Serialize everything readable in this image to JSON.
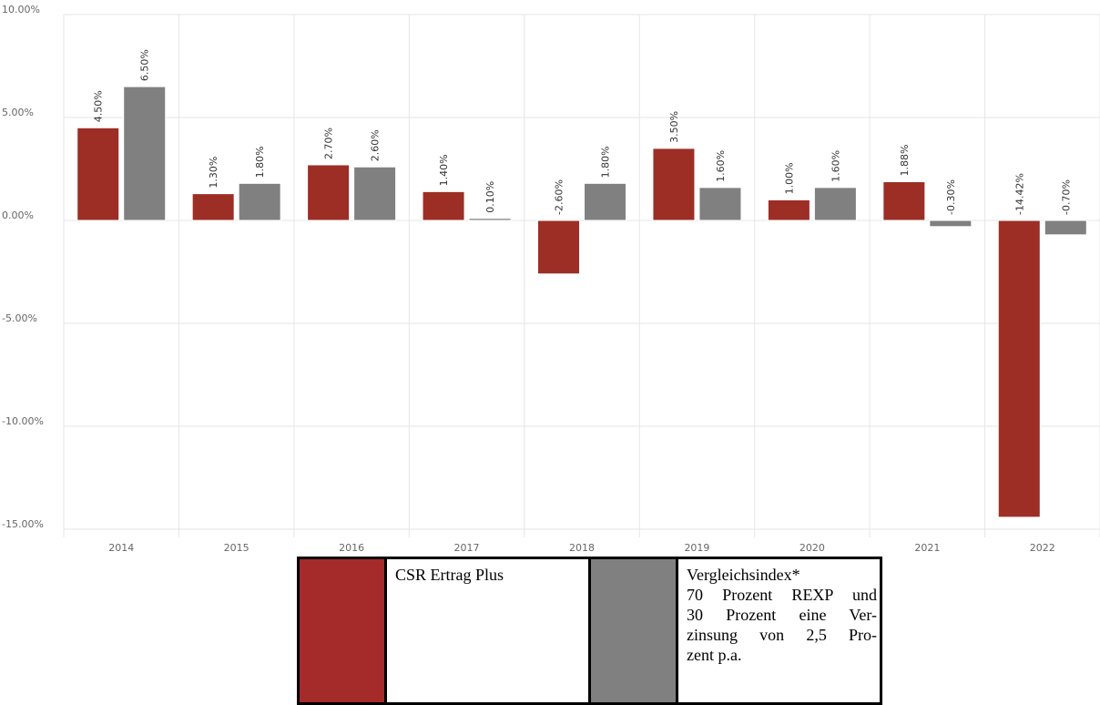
{
  "chart_data": {
    "type": "bar",
    "categories": [
      "2014",
      "2015",
      "2016",
      "2017",
      "2018",
      "2019",
      "2020",
      "2021",
      "2022"
    ],
    "series": [
      {
        "name": "CSR Ertrag Plus",
        "color": "#9c2e26",
        "values": [
          4.5,
          1.3,
          2.7,
          1.4,
          -2.6,
          3.5,
          1.0,
          1.88,
          -14.42
        ],
        "labels": [
          "4.50%",
          "1.30%",
          "2.70%",
          "1.40%",
          "-2.60%",
          "3.50%",
          "1.00%",
          "1.88%",
          "-14.42%"
        ]
      },
      {
        "name": "Vergleichsindex*",
        "color": "#808080",
        "values": [
          6.5,
          1.8,
          2.6,
          0.1,
          1.8,
          1.6,
          1.6,
          -0.3,
          -0.7
        ],
        "labels": [
          "6.50%",
          "1.80%",
          "2.60%",
          "0.10%",
          "1.80%",
          "1.60%",
          "1.60%",
          "-0.30%",
          "-0.70%"
        ]
      }
    ],
    "ylim": [
      -15,
      10
    ],
    "yticks": [
      10,
      5,
      0,
      -5,
      -10,
      -15
    ],
    "ytick_labels": [
      "10.00%",
      "5.00%",
      "0.00%",
      "-5.00%",
      "-10.00%",
      "-15.00%"
    ],
    "grid": true,
    "legend_position": "bottom-center",
    "legend": [
      {
        "color": "#a52a2a",
        "text_lines": [
          "CSR Ertrag Plus"
        ]
      },
      {
        "color": "#808080",
        "text_lines": [
          "Vergleichsindex*",
          "70 Prozent REXP und",
          "30 Prozent eine Ver-",
          "zinsung von 2,5 Pro-",
          "zent p.a."
        ]
      }
    ]
  }
}
